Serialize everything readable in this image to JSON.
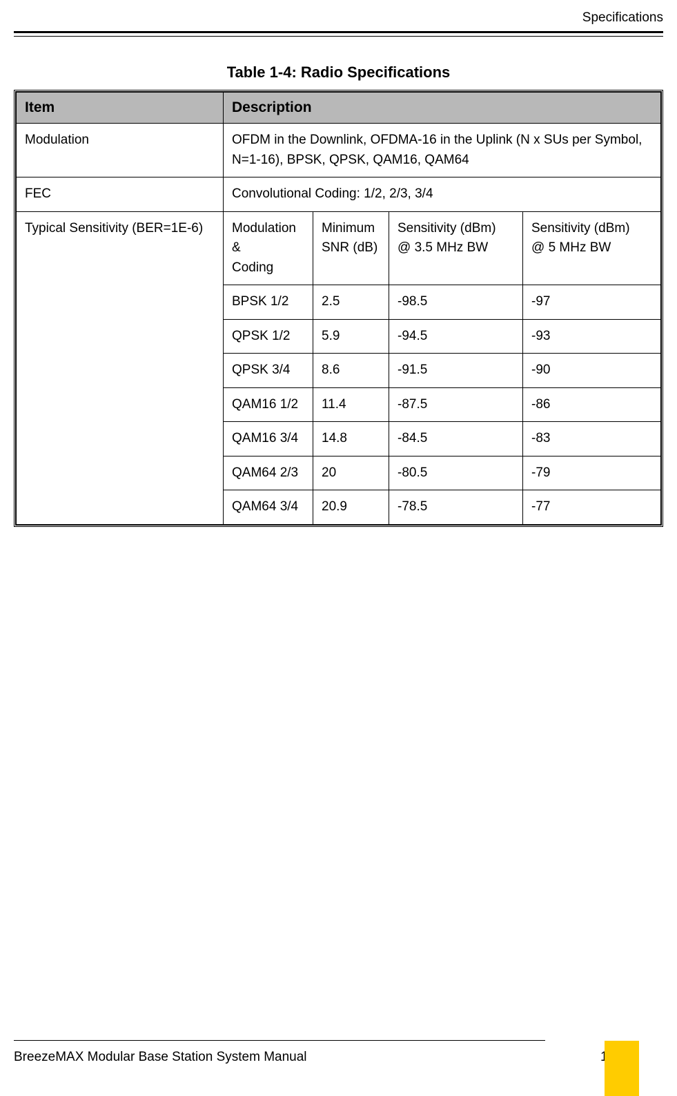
{
  "header": {
    "section_title": "Specifications"
  },
  "table": {
    "title": "Table 1-4: Radio Specifications",
    "columns": {
      "item": "Item",
      "description": "Description"
    },
    "rows": {
      "modulation": {
        "item": "Modulation",
        "desc": "OFDM in the Downlink, OFDMA-16 in the Uplink (N x SUs per Symbol, N=1-16), BPSK, QPSK, QAM16, QAM64"
      },
      "fec": {
        "item": "FEC",
        "desc": "Convolutional Coding: 1/2, 2/3, 3/4"
      },
      "sensitivity": {
        "item": "Typical Sensitivity (BER=1E-6)",
        "nested_headers": {
          "col1_l1": "Modulation &",
          "col1_l2": "Coding",
          "col2_l1": "Minimum",
          "col2_l2": "SNR (dB)",
          "col3_l1": "Sensitivity (dBm)",
          "col3_l2": "@ 3.5 MHz BW",
          "col4_l1": "Sensitivity (dBm)",
          "col4_l2": "@ 5 MHz BW"
        },
        "nested_rows": [
          {
            "mod": "BPSK 1/2",
            "snr": "2.5",
            "s35": "-98.5",
            "s5": "-97"
          },
          {
            "mod": "QPSK 1/2",
            "snr": "5.9",
            "s35": "-94.5",
            "s5": "-93"
          },
          {
            "mod": "QPSK 3/4",
            "snr": "8.6",
            "s35": "-91.5",
            "s5": "-90"
          },
          {
            "mod": "QAM16 1/2",
            "snr": "11.4",
            "s35": "-87.5",
            "s5": "-86"
          },
          {
            "mod": "QAM16 3/4",
            "snr": "14.8",
            "s35": "-84.5",
            "s5": "-83"
          },
          {
            "mod": "QAM64 2/3",
            "snr": "20",
            "s35": "-80.5",
            "s5": "-79"
          },
          {
            "mod": "QAM64 3/4",
            "snr": "20.9",
            "s35": "-78.5",
            "s5": "-77"
          }
        ]
      }
    }
  },
  "footer": {
    "left": "BreezeMAX Modular Base Station System Manual",
    "page": "19"
  },
  "colors": {
    "header_bg": "#b8b8b8",
    "text": "#000000",
    "background": "#ffffff",
    "accent": "#ffcc00"
  },
  "typography": {
    "body_font": "Arial",
    "title_fontsize": 22,
    "body_fontsize": 19,
    "header_fontsize": 21
  }
}
